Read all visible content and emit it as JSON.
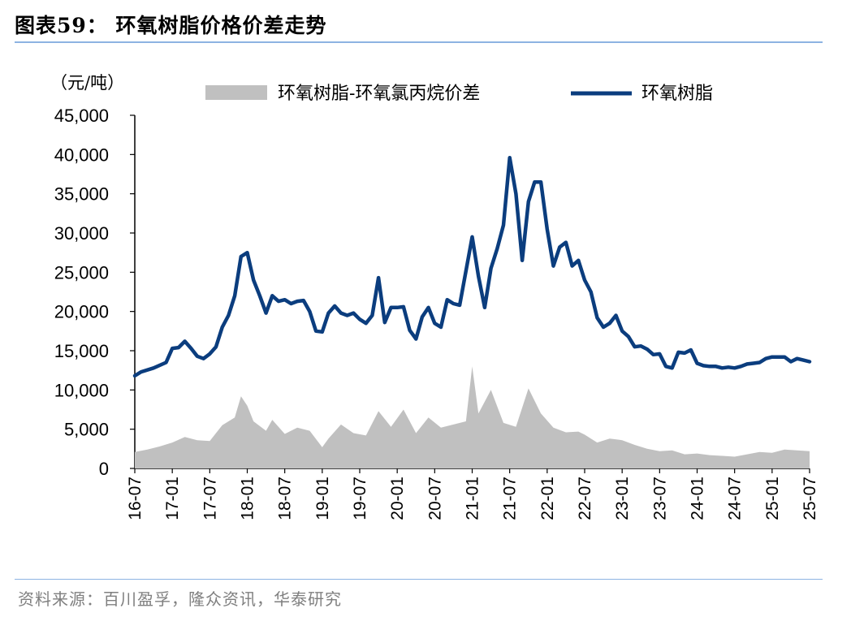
{
  "header": {
    "title": "图表59：  环氧树脂价格价差走势"
  },
  "footer": {
    "source": "资料来源：百川盈孚，隆众资讯，华泰研究"
  },
  "colors": {
    "line": "#0b3d7e",
    "area": "#c0c0c0",
    "rule": "#8db3e2"
  },
  "chart_data": {
    "type": "line",
    "unit": "（元/吨）",
    "ylim": [
      0,
      45000
    ],
    "y_ticks": [
      "45,000",
      "40,000",
      "35,000",
      "30,000",
      "25,000",
      "20,000",
      "15,000",
      "10,000",
      "5,000",
      "0"
    ],
    "x_ticks": [
      "16-07",
      "17-01",
      "17-07",
      "18-01",
      "18-07",
      "19-01",
      "19-07",
      "20-01",
      "20-07",
      "21-01",
      "21-07",
      "22-01",
      "22-07",
      "23-01",
      "23-07",
      "24-01",
      "24-07",
      "25-01",
      "25-07"
    ],
    "legend_position": "top",
    "series": [
      {
        "name": "环氧树脂-环氧氯丙烷价差",
        "style": "area",
        "points": [
          [
            "16-07",
            2100
          ],
          [
            "16-09",
            2400
          ],
          [
            "16-11",
            2800
          ],
          [
            "17-01",
            3300
          ],
          [
            "17-03",
            4000
          ],
          [
            "17-05",
            3600
          ],
          [
            "17-07",
            3500
          ],
          [
            "17-09",
            5500
          ],
          [
            "17-11",
            6500
          ],
          [
            "17-12",
            9200
          ],
          [
            "18-01",
            8000
          ],
          [
            "18-02",
            6000
          ],
          [
            "18-04",
            4800
          ],
          [
            "18-05",
            6200
          ],
          [
            "18-07",
            4400
          ],
          [
            "18-09",
            5200
          ],
          [
            "18-11",
            4800
          ],
          [
            "19-01",
            2700
          ],
          [
            "19-02",
            3800
          ],
          [
            "19-04",
            5600
          ],
          [
            "19-06",
            4500
          ],
          [
            "19-08",
            4200
          ],
          [
            "19-10",
            7300
          ],
          [
            "19-12",
            5300
          ],
          [
            "20-02",
            7500
          ],
          [
            "20-04",
            4500
          ],
          [
            "20-06",
            6500
          ],
          [
            "20-08",
            5200
          ],
          [
            "20-10",
            5600
          ],
          [
            "20-12",
            6000
          ],
          [
            "21-01",
            13000
          ],
          [
            "21-02",
            7000
          ],
          [
            "21-04",
            10000
          ],
          [
            "21-06",
            5800
          ],
          [
            "21-08",
            5300
          ],
          [
            "21-10",
            10200
          ],
          [
            "21-12",
            7000
          ],
          [
            "22-02",
            5200
          ],
          [
            "22-04",
            4600
          ],
          [
            "22-06",
            4700
          ],
          [
            "22-07",
            4300
          ],
          [
            "22-09",
            3300
          ],
          [
            "22-11",
            3800
          ],
          [
            "23-01",
            3600
          ],
          [
            "23-03",
            3000
          ],
          [
            "23-05",
            2500
          ],
          [
            "23-07",
            2200
          ],
          [
            "23-09",
            2300
          ],
          [
            "23-11",
            1800
          ],
          [
            "24-01",
            1900
          ],
          [
            "24-03",
            1700
          ],
          [
            "24-05",
            1600
          ],
          [
            "24-07",
            1500
          ],
          [
            "24-09",
            1800
          ],
          [
            "24-11",
            2100
          ],
          [
            "25-01",
            2000
          ],
          [
            "25-03",
            2400
          ],
          [
            "25-05",
            2300
          ],
          [
            "25-07",
            2200
          ]
        ]
      },
      {
        "name": "环氧树脂",
        "style": "line",
        "points": [
          [
            "16-07",
            11800
          ],
          [
            "16-08",
            12300
          ],
          [
            "16-10",
            12800
          ],
          [
            "16-12",
            13500
          ],
          [
            "17-01",
            15300
          ],
          [
            "17-02",
            15400
          ],
          [
            "17-03",
            16200
          ],
          [
            "17-04",
            15300
          ],
          [
            "17-05",
            14300
          ],
          [
            "17-06",
            14000
          ],
          [
            "17-07",
            14600
          ],
          [
            "17-08",
            15500
          ],
          [
            "17-09",
            18000
          ],
          [
            "17-10",
            19500
          ],
          [
            "17-11",
            22000
          ],
          [
            "17-12",
            27000
          ],
          [
            "18-01",
            27500
          ],
          [
            "18-02",
            24000
          ],
          [
            "18-03",
            22000
          ],
          [
            "18-04",
            19800
          ],
          [
            "18-05",
            22000
          ],
          [
            "18-06",
            21300
          ],
          [
            "18-07",
            21500
          ],
          [
            "18-08",
            21000
          ],
          [
            "18-09",
            21300
          ],
          [
            "18-10",
            21400
          ],
          [
            "18-11",
            20000
          ],
          [
            "18-12",
            17500
          ],
          [
            "19-01",
            17400
          ],
          [
            "19-02",
            19800
          ],
          [
            "19-03",
            20700
          ],
          [
            "19-04",
            19800
          ],
          [
            "19-05",
            19500
          ],
          [
            "19-06",
            19800
          ],
          [
            "19-07",
            19000
          ],
          [
            "19-08",
            18500
          ],
          [
            "19-09",
            19500
          ],
          [
            "19-10",
            24300
          ],
          [
            "19-11",
            18600
          ],
          [
            "19-12",
            20500
          ],
          [
            "20-01",
            20500
          ],
          [
            "20-02",
            20600
          ],
          [
            "20-03",
            17600
          ],
          [
            "20-04",
            16500
          ],
          [
            "20-05",
            19300
          ],
          [
            "20-06",
            20500
          ],
          [
            "20-07",
            18500
          ],
          [
            "20-08",
            18000
          ],
          [
            "20-09",
            21500
          ],
          [
            "20-10",
            21000
          ],
          [
            "20-11",
            20800
          ],
          [
            "21-01",
            29500
          ],
          [
            "21-02",
            24500
          ],
          [
            "21-03",
            20500
          ],
          [
            "21-04",
            25500
          ],
          [
            "21-05",
            28000
          ],
          [
            "21-06",
            31000
          ],
          [
            "21-07",
            39600
          ],
          [
            "21-08",
            35000
          ],
          [
            "21-09",
            26500
          ],
          [
            "21-10",
            34000
          ],
          [
            "21-11",
            36500
          ],
          [
            "21-12",
            36500
          ],
          [
            "22-01",
            30500
          ],
          [
            "22-02",
            25800
          ],
          [
            "22-03",
            28200
          ],
          [
            "22-04",
            28800
          ],
          [
            "22-05",
            25800
          ],
          [
            "22-06",
            26500
          ],
          [
            "22-07",
            24000
          ],
          [
            "22-08",
            22500
          ],
          [
            "22-09",
            19200
          ],
          [
            "22-10",
            18000
          ],
          [
            "22-11",
            18500
          ],
          [
            "22-12",
            19500
          ],
          [
            "23-01",
            17500
          ],
          [
            "23-02",
            16800
          ],
          [
            "23-03",
            15500
          ],
          [
            "23-04",
            15600
          ],
          [
            "23-05",
            15200
          ],
          [
            "23-06",
            14500
          ],
          [
            "23-07",
            14600
          ],
          [
            "23-08",
            13000
          ],
          [
            "23-09",
            12800
          ],
          [
            "23-10",
            14800
          ],
          [
            "23-11",
            14700
          ],
          [
            "23-12",
            15100
          ],
          [
            "24-01",
            13400
          ],
          [
            "24-02",
            13100
          ],
          [
            "24-03",
            13000
          ],
          [
            "24-04",
            13000
          ],
          [
            "24-05",
            12800
          ],
          [
            "24-06",
            12900
          ],
          [
            "24-07",
            12800
          ],
          [
            "24-08",
            13000
          ],
          [
            "24-09",
            13300
          ],
          [
            "24-10",
            13400
          ],
          [
            "24-11",
            13500
          ],
          [
            "24-12",
            14000
          ],
          [
            "25-01",
            14200
          ],
          [
            "25-02",
            14200
          ],
          [
            "25-03",
            14200
          ],
          [
            "25-04",
            13600
          ],
          [
            "25-05",
            14000
          ],
          [
            "25-06",
            13800
          ],
          [
            "25-07",
            13600
          ]
        ]
      }
    ]
  }
}
